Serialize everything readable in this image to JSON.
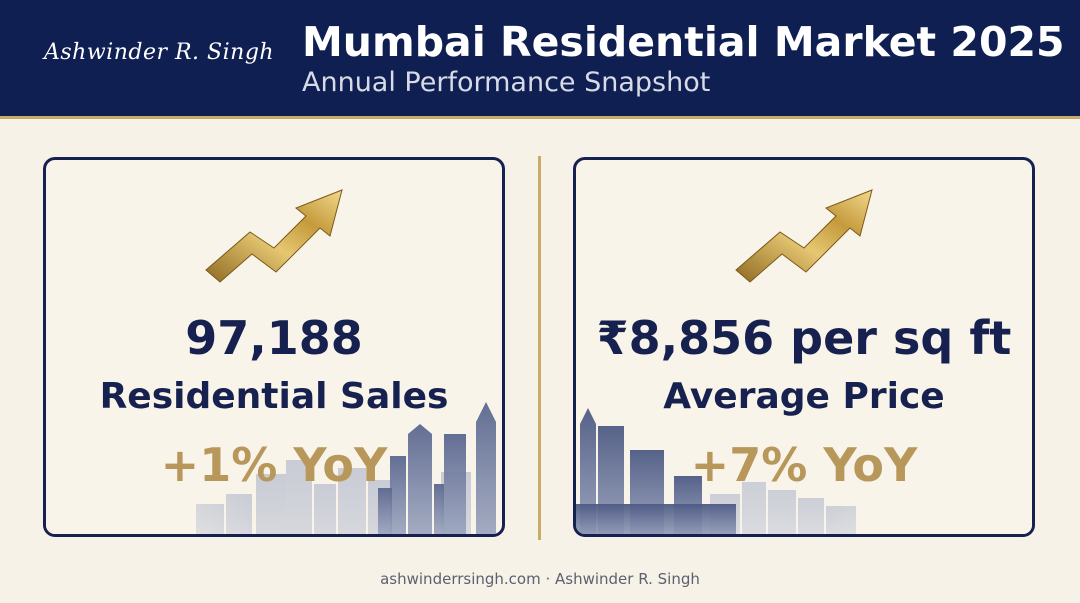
{
  "header": {
    "signature": "Ashwinder R. Singh",
    "title": "Mumbai Residential Market 2025",
    "subtitle": "Annual Performance Snapshot"
  },
  "cards": [
    {
      "value": "97,188",
      "label": "Residential Sales",
      "change": "+1% YoY",
      "icon": "upward-trend-arrow-icon"
    },
    {
      "value": "₹8,856 per sq ft",
      "label": "Average Price",
      "change": "+7% YoY",
      "icon": "upward-trend-arrow-icon"
    }
  ],
  "footer": {
    "text": "ashwinderrsingh.com · Ashwinder R. Singh"
  },
  "colors": {
    "header_background": "#0f1f52",
    "accent_gold": "#c9ac6a",
    "change_gold": "#b8975a",
    "text_navy": "#17214f",
    "page_background": "#f6f2e7"
  }
}
